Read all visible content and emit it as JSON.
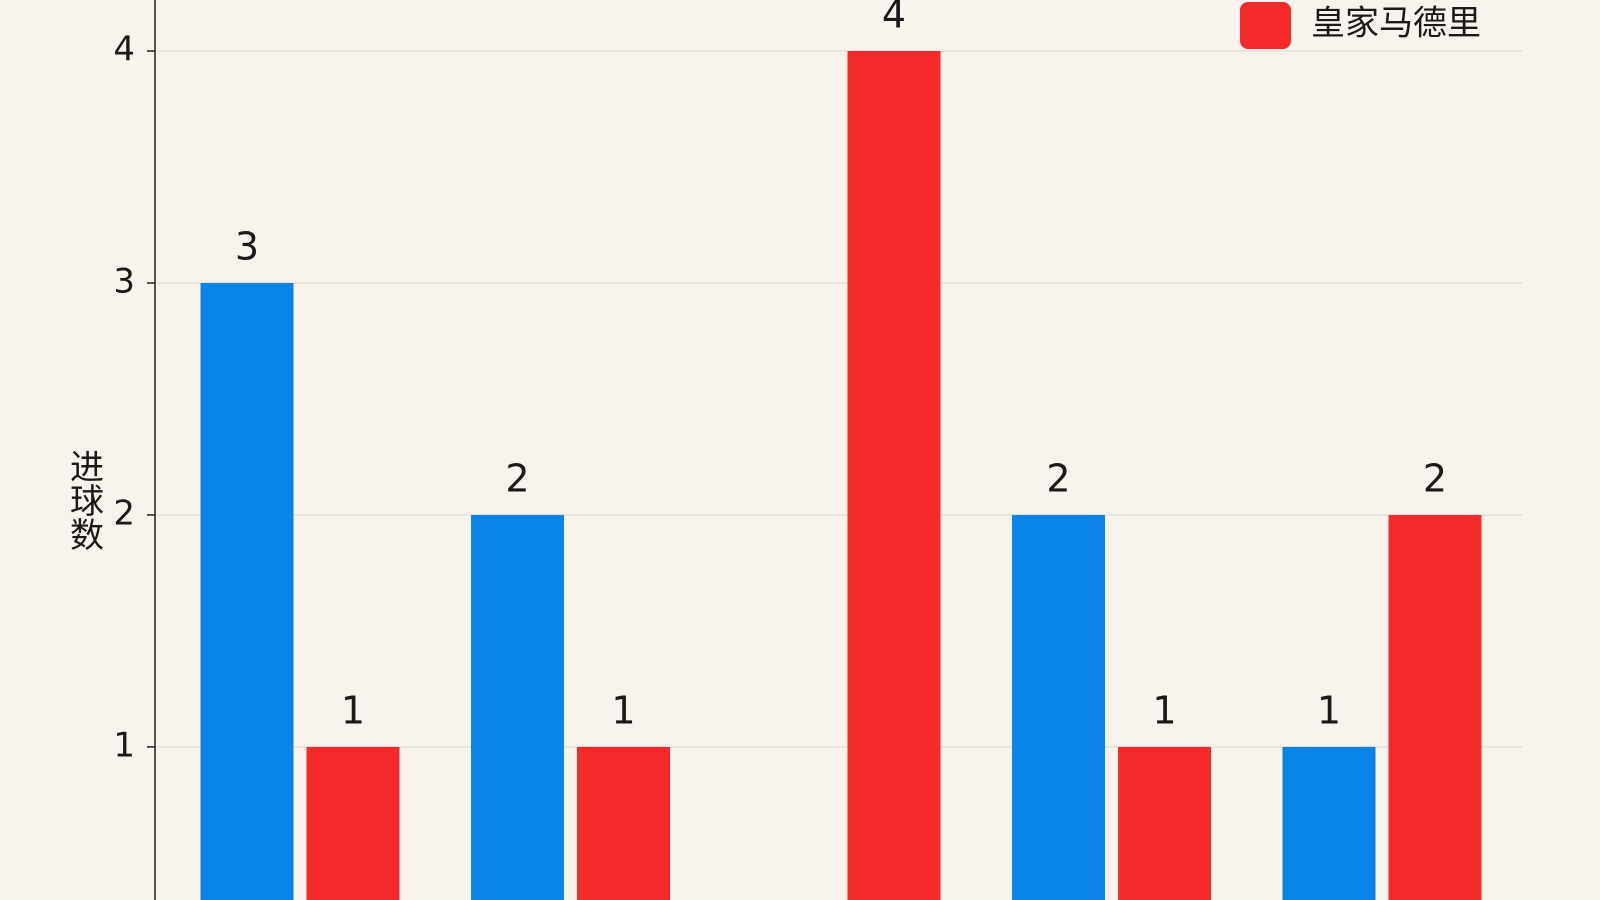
{
  "chart_data": {
    "type": "bar",
    "y_label": "进球数",
    "categories": [
      null,
      null,
      null,
      null,
      null
    ],
    "series": [
      {
        "color": "#0a84e6",
        "values": [
          3,
          2,
          null,
          2,
          1
        ]
      },
      {
        "name": "皇家马德里",
        "color": "#f52a2a",
        "values": [
          1,
          1,
          4,
          1,
          2
        ]
      }
    ],
    "ylim": [
      0.34,
      4.22
    ],
    "yticks": [
      1,
      2,
      3,
      4
    ],
    "grid": true,
    "legend": "top-right"
  }
}
